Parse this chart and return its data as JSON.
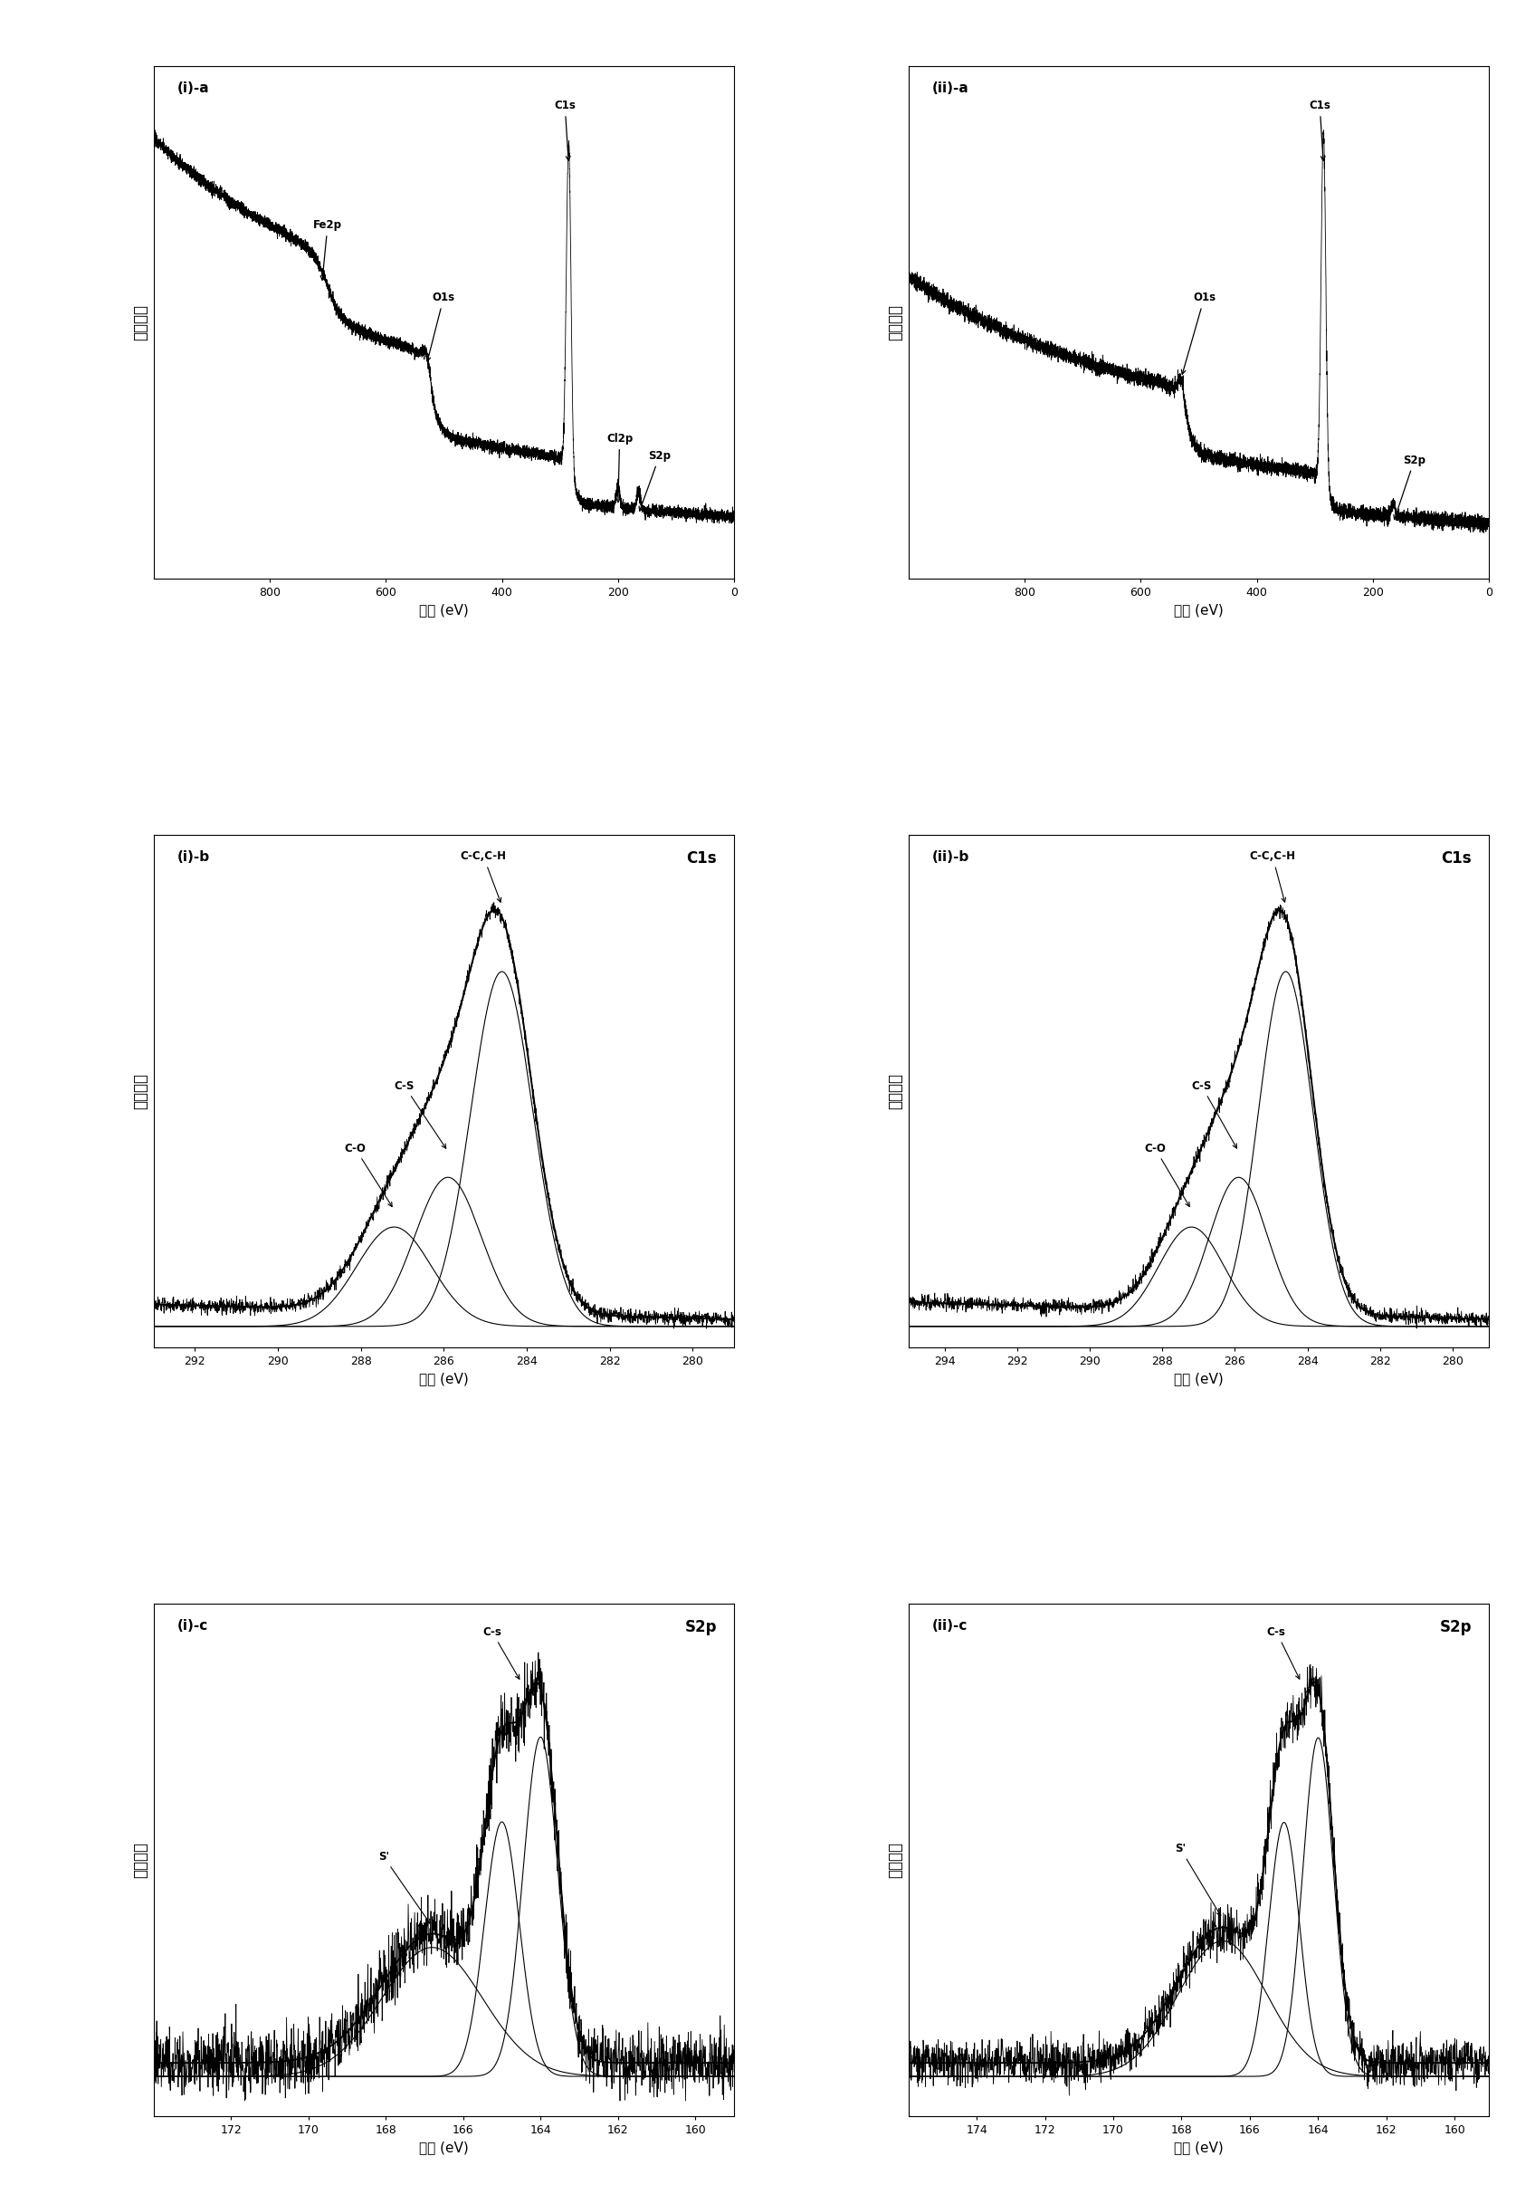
{
  "fig_width": 16.96,
  "fig_height": 24.34,
  "background": "#ffffff",
  "panels": [
    {
      "label": "(i)-a",
      "xlabel": "键能 (eV)",
      "ylabel": "相对强度",
      "xticks": [
        800,
        600,
        400,
        200,
        0
      ]
    },
    {
      "label": "(ii)-a",
      "xlabel": "键能 (eV)",
      "ylabel": "相对强度",
      "xticks": [
        800,
        600,
        400,
        200,
        0
      ]
    },
    {
      "label": "(i)-b",
      "corner_label": "C1s",
      "xlabel": "键能 (eV)",
      "ylabel": "相对强度",
      "xticks": [
        292,
        290,
        288,
        286,
        284,
        282,
        280
      ]
    },
    {
      "label": "(ii)-b",
      "corner_label": "C1s",
      "xlabel": "键能 (eV)",
      "ylabel": "相对强度",
      "xticks": [
        294,
        292,
        290,
        288,
        286,
        284,
        282,
        280
      ]
    },
    {
      "label": "(i)-c",
      "corner_label": "S2p",
      "xlabel": "键能 (eV)",
      "ylabel": "相对强度",
      "xticks": [
        172,
        170,
        168,
        166,
        164,
        162,
        160
      ]
    },
    {
      "label": "(ii)-c",
      "corner_label": "S2p",
      "xlabel": "键能 (eV)",
      "ylabel": "相对强度",
      "xticks": [
        174,
        172,
        170,
        168,
        166,
        164,
        162,
        160
      ]
    }
  ]
}
